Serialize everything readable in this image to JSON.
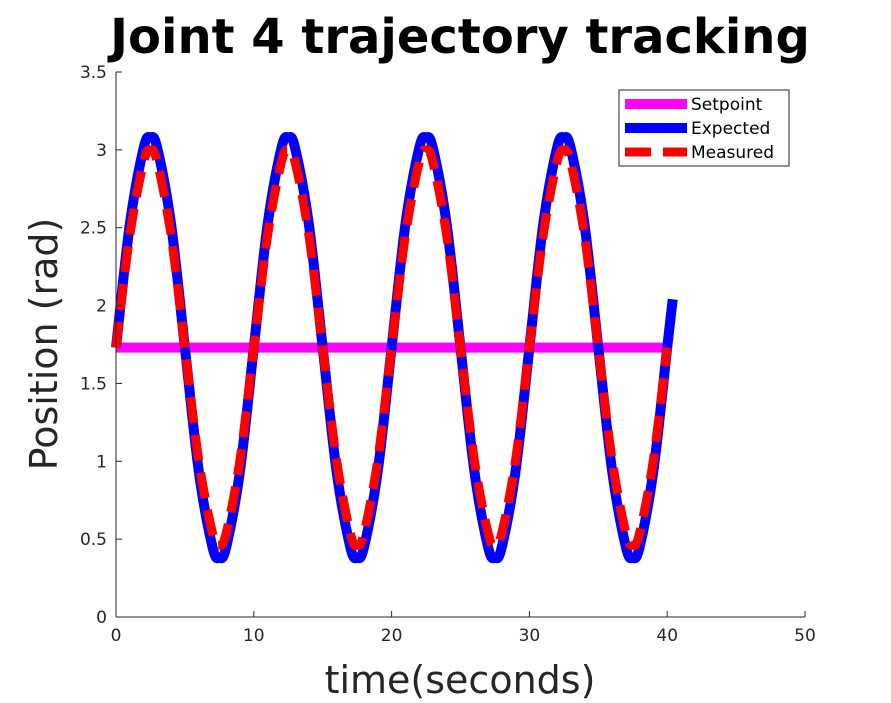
{
  "chart_data": {
    "type": "line",
    "title": "Joint 4 trajectory tracking",
    "xlabel": "time(seconds)",
    "ylabel": "Position (rad)",
    "xlim": [
      0,
      50
    ],
    "ylim": [
      0,
      3.5
    ],
    "xticks": [
      0,
      10,
      20,
      30,
      40,
      50
    ],
    "xtick_labels": [
      "0",
      "10",
      "20",
      "30",
      "40",
      "50"
    ],
    "yticks": [
      0,
      0.5,
      1,
      1.5,
      2,
      2.5,
      3,
      3.5
    ],
    "ytick_labels": [
      "0",
      "0.5",
      "1",
      "1.5",
      "2",
      "2.5",
      "3",
      "3.5"
    ],
    "grid": false,
    "legend_position": "top-right",
    "series": [
      {
        "name": "Setpoint",
        "color": "#ff00ff",
        "style": "solid",
        "x": [
          0,
          40
        ],
        "y": [
          1.73,
          1.73
        ]
      },
      {
        "name": "Expected",
        "color": "#0000ff",
        "style": "solid",
        "x": [
          0,
          1,
          2,
          2.5,
          3,
          4,
          5,
          6,
          7,
          7.5,
          8,
          9,
          10,
          11,
          12,
          12.5,
          13,
          14,
          15,
          16,
          17,
          17.5,
          18,
          19,
          20,
          21,
          22,
          22.5,
          23,
          24,
          25,
          26,
          27,
          27.5,
          28,
          29,
          30,
          31,
          32,
          32.5,
          33,
          34,
          35,
          36,
          37,
          37.5,
          38,
          39,
          40,
          40.4
        ],
        "y": [
          1.73,
          2.52,
          3.01,
          3.08,
          3.01,
          2.52,
          1.73,
          0.94,
          0.45,
          0.38,
          0.45,
          0.94,
          1.73,
          2.52,
          3.01,
          3.08,
          3.01,
          2.52,
          1.73,
          0.94,
          0.45,
          0.38,
          0.45,
          0.94,
          1.73,
          2.52,
          3.01,
          3.08,
          3.01,
          2.52,
          1.73,
          0.94,
          0.45,
          0.38,
          0.45,
          0.94,
          1.73,
          2.52,
          3.01,
          3.08,
          3.01,
          2.52,
          1.73,
          0.94,
          0.45,
          0.38,
          0.45,
          0.94,
          1.73,
          2.04
        ]
      },
      {
        "name": "Measured",
        "color": "#ff0000",
        "style": "dashed",
        "x": [
          0,
          1,
          2,
          2.5,
          3,
          4,
          5,
          6,
          7,
          7.5,
          8,
          9,
          10,
          11,
          12,
          12.5,
          13,
          14,
          15,
          16,
          17,
          17.5,
          18,
          19,
          20,
          21,
          22,
          22.5,
          23,
          24,
          25,
          26,
          27,
          27.5,
          28,
          29,
          30,
          31,
          32,
          32.5,
          33,
          34,
          35,
          36,
          37,
          37.5,
          38,
          39,
          40
        ],
        "y": [
          1.73,
          2.45,
          2.92,
          3.0,
          2.92,
          2.45,
          1.73,
          1.01,
          0.54,
          0.46,
          0.54,
          1.01,
          1.73,
          2.45,
          2.92,
          3.0,
          2.92,
          2.45,
          1.73,
          1.01,
          0.54,
          0.46,
          0.54,
          1.01,
          1.73,
          2.45,
          2.92,
          3.0,
          2.92,
          2.45,
          1.73,
          1.01,
          0.54,
          0.46,
          0.54,
          1.01,
          1.73,
          2.45,
          2.92,
          3.0,
          2.92,
          2.45,
          1.73,
          1.01,
          0.54,
          0.46,
          0.54,
          1.01,
          1.73
        ]
      }
    ]
  }
}
